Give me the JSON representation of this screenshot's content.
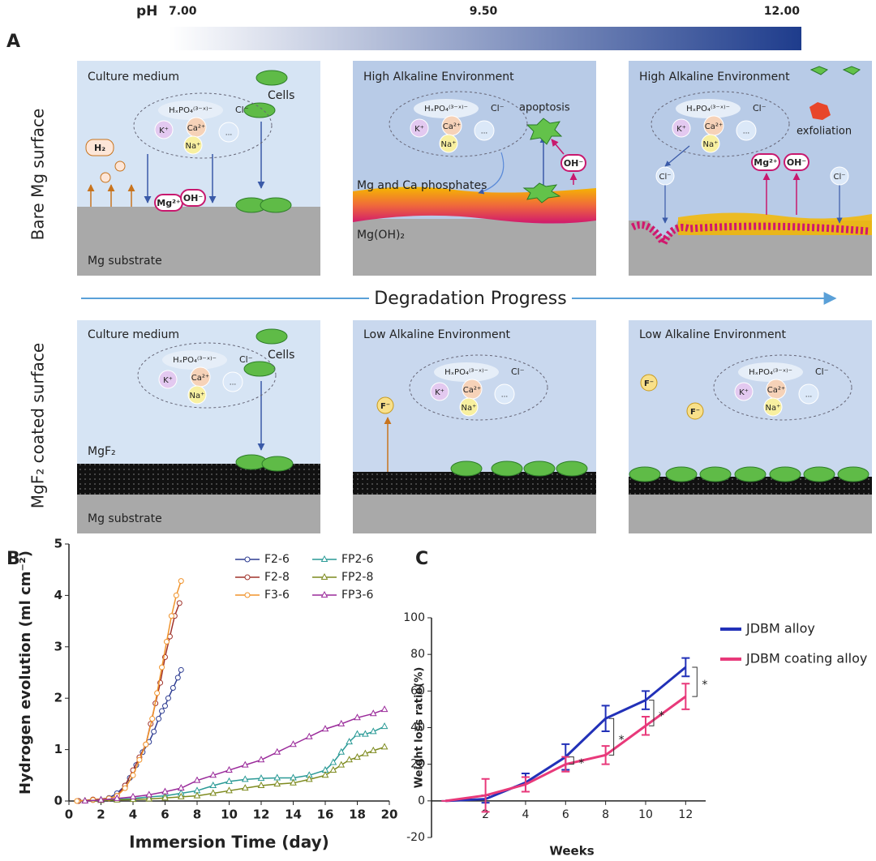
{
  "diagram": {
    "ph": {
      "label": "pH",
      "min": "7.00",
      "mid": "9.50",
      "max": "12.00"
    },
    "panel_labels": [
      "A",
      "B",
      "C"
    ],
    "row_labels": [
      "Bare Mg surface",
      "MgF₂ coated surface"
    ],
    "progress": "Degradation Progress",
    "ions": {
      "phosphate": "HₓPO₄⁽³⁻ˣ⁾⁻",
      "cl": "Cl⁻",
      "k": "K⁺",
      "ca": "Ca²⁺",
      "na": "Na⁺",
      "more": "..."
    },
    "panels": [
      {
        "title": "Culture medium",
        "cells": "Cells",
        "substrate": "Mg substrate",
        "h2": "H₂",
        "mg": "Mg²⁺",
        "oh": "OH⁻"
      },
      {
        "title": "High Alkaline Environment",
        "apoptosis": "apoptosis",
        "phosphates": "Mg and Ca phosphates",
        "hydroxide": "Mg(OH)₂",
        "oh": "OH⁻"
      },
      {
        "title": "High Alkaline Environment",
        "exfoliation": "exfoliation",
        "cl": "Cl⁻",
        "mg": "Mg²⁺",
        "oh": "OH⁻"
      },
      {
        "title": "Culture medium",
        "cells": "Cells",
        "coating": "MgF₂",
        "substrate": "Mg substrate"
      },
      {
        "title": "Low Alkaline Environment",
        "f": "F⁻"
      },
      {
        "title": "Low Alkaline Environment",
        "f": "F⁻"
      }
    ]
  },
  "chart_data": [
    {
      "type": "line",
      "xlabel": "Immersion Time (day)",
      "ylabel": "Hydrogen evolution (ml cm⁻²)",
      "xlim": [
        0,
        20
      ],
      "ylim": [
        0,
        5
      ],
      "xticks": [
        0,
        2,
        4,
        6,
        8,
        10,
        12,
        14,
        16,
        18,
        20
      ],
      "yticks": [
        0,
        1,
        2,
        3,
        4,
        5
      ],
      "grid": false,
      "legend": "upper right",
      "series": [
        {
          "name": "F2-6",
          "color": "#2e3d92",
          "marker": "circle",
          "x": [
            0.6,
            1.5,
            2.5,
            3,
            3.5,
            3.8,
            4.2,
            4.6,
            5,
            5.3,
            5.6,
            5.8,
            6,
            6.2,
            6.5,
            6.8,
            7
          ],
          "values": [
            0,
            0.02,
            0.06,
            0.15,
            0.3,
            0.45,
            0.7,
            0.95,
            1.15,
            1.35,
            1.6,
            1.75,
            1.85,
            2.0,
            2.2,
            2.4,
            2.55
          ]
        },
        {
          "name": "F2-8",
          "color": "#a0332b",
          "marker": "circle",
          "x": [
            0.6,
            1.5,
            2.5,
            3,
            3.5,
            4,
            4.4,
            4.8,
            5.1,
            5.4,
            5.7,
            6,
            6.3,
            6.6,
            6.9
          ],
          "values": [
            0,
            0.03,
            0.05,
            0.1,
            0.3,
            0.6,
            0.85,
            1.1,
            1.5,
            1.9,
            2.3,
            2.8,
            3.2,
            3.6,
            3.85
          ]
        },
        {
          "name": "F3-6",
          "color": "#f0932b",
          "marker": "circle",
          "x": [
            0.5,
            1.5,
            2.5,
            3,
            3.5,
            4,
            4.4,
            4.8,
            5.2,
            5.5,
            5.8,
            6.1,
            6.4,
            6.7,
            7
          ],
          "values": [
            0,
            0.02,
            0.05,
            0.1,
            0.25,
            0.5,
            0.8,
            1.1,
            1.6,
            2.1,
            2.6,
            3.1,
            3.6,
            4.0,
            4.28
          ]
        },
        {
          "name": "FP2-6",
          "color": "#2a9a96",
          "marker": "triangle",
          "x": [
            1,
            2,
            3,
            4,
            5,
            6,
            7,
            8,
            9,
            10,
            11,
            12,
            13,
            14,
            15,
            16,
            16.5,
            17,
            17.5,
            18,
            18.5,
            19,
            19.7
          ],
          "values": [
            0,
            0.02,
            0.03,
            0.05,
            0.08,
            0.1,
            0.15,
            0.2,
            0.3,
            0.38,
            0.42,
            0.44,
            0.45,
            0.45,
            0.5,
            0.6,
            0.75,
            0.95,
            1.15,
            1.3,
            1.3,
            1.35,
            1.45
          ]
        },
        {
          "name": "FP2-8",
          "color": "#7d8a1e",
          "marker": "triangle",
          "x": [
            1,
            2,
            3,
            4,
            5,
            6,
            7,
            8,
            9,
            10,
            11,
            12,
            13,
            14,
            15,
            16,
            16.5,
            17,
            17.5,
            18,
            18.5,
            19,
            19.7
          ],
          "values": [
            0,
            0.01,
            0.02,
            0.03,
            0.04,
            0.06,
            0.08,
            0.1,
            0.15,
            0.2,
            0.25,
            0.3,
            0.33,
            0.35,
            0.42,
            0.5,
            0.6,
            0.7,
            0.8,
            0.85,
            0.92,
            0.98,
            1.05
          ]
        },
        {
          "name": "FP3-6",
          "color": "#9a2a9a",
          "marker": "triangle",
          "x": [
            1,
            2,
            3,
            4,
            5,
            6,
            7,
            8,
            9,
            10,
            11,
            12,
            13,
            14,
            15,
            16,
            17,
            18,
            19,
            19.7
          ],
          "values": [
            0,
            0.02,
            0.05,
            0.08,
            0.12,
            0.18,
            0.25,
            0.4,
            0.5,
            0.6,
            0.7,
            0.8,
            0.95,
            1.1,
            1.25,
            1.4,
            1.5,
            1.62,
            1.7,
            1.78
          ]
        }
      ]
    },
    {
      "type": "line",
      "xlabel": "Weeks",
      "ylabel": "Weight loss ratio(%)",
      "xlim": [
        -0.7,
        13
      ],
      "ylim": [
        -20,
        100
      ],
      "xticks": [
        2,
        4,
        6,
        8,
        10,
        12
      ],
      "yticks": [
        -20,
        0,
        20,
        40,
        60,
        80,
        100
      ],
      "grid": false,
      "legend": "right",
      "x": [
        0,
        2,
        4,
        6,
        8,
        10,
        12
      ],
      "series": [
        {
          "name": "JDBM alloy",
          "color": "#2231b8",
          "values": [
            0,
            1,
            10,
            24,
            45,
            55,
            73
          ],
          "errors": [
            0,
            2,
            5,
            7,
            7,
            5,
            5
          ]
        },
        {
          "name": "JDBM coating alloy",
          "color": "#e8397a",
          "values": [
            0,
            3,
            9,
            20,
            25,
            41,
            57
          ],
          "errors": [
            0,
            9,
            4,
            4,
            5,
            5,
            7
          ]
        }
      ],
      "annotations": [
        "*",
        "*",
        "*",
        "*"
      ]
    }
  ]
}
